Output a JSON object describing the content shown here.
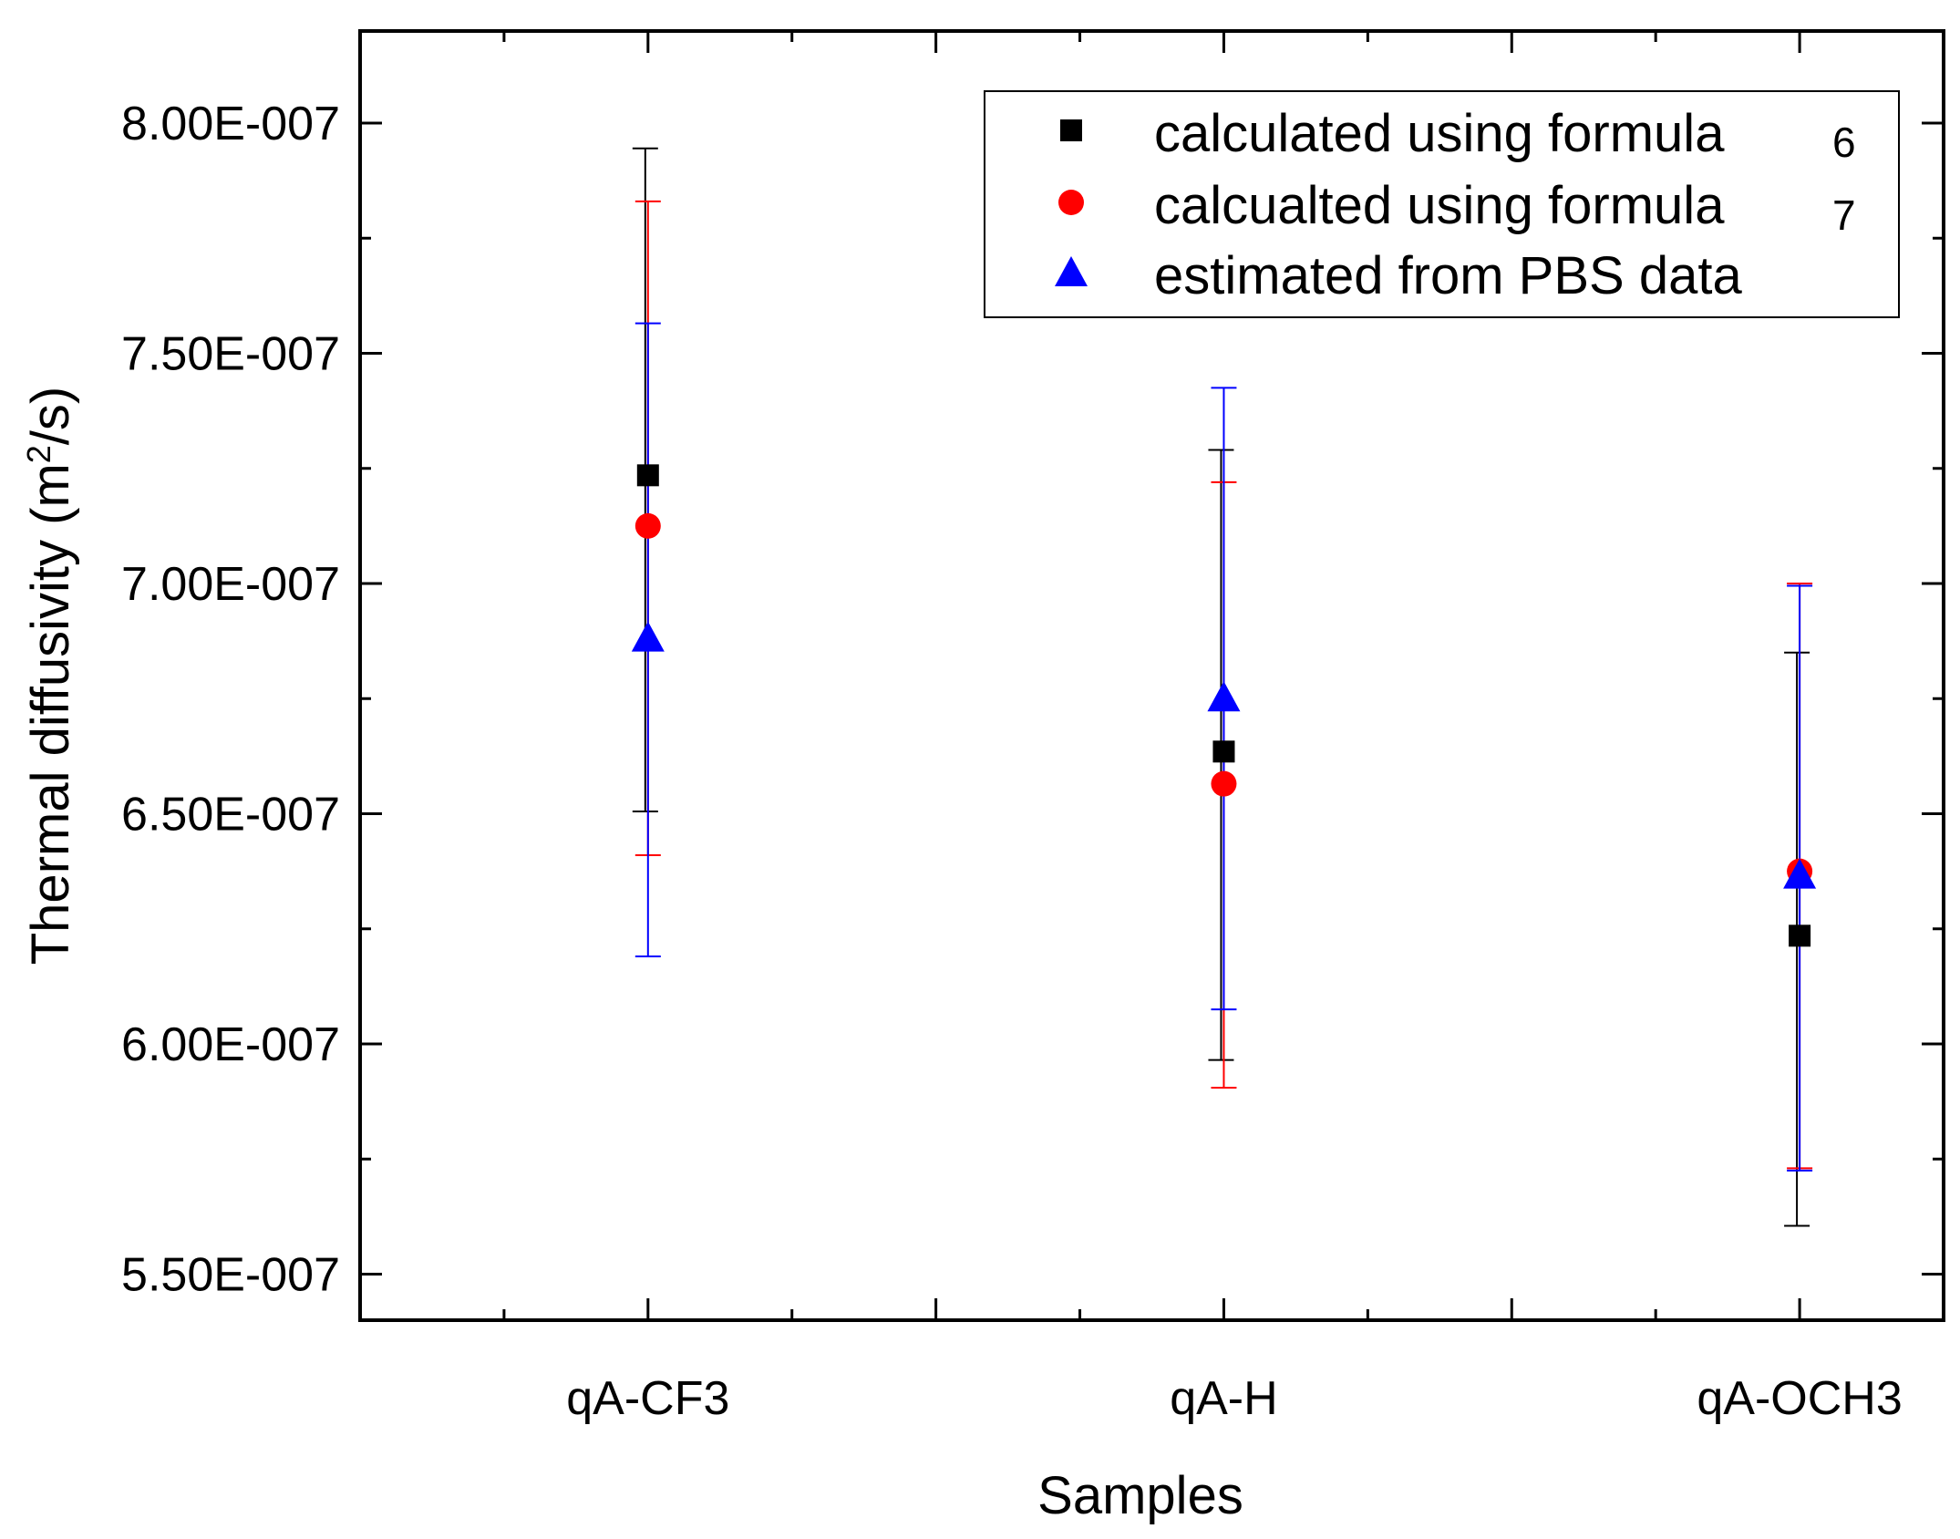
{
  "chart_data": {
    "type": "scatter",
    "title": "",
    "xlabel": "Samples",
    "ylabel_main": "Thermal diffusivity (m",
    "ylabel_sup": "2",
    "ylabel_tail": "/s)",
    "categories": [
      "qA-CF3",
      "qA-H",
      "qA-OCH3"
    ],
    "xlim": [
      0.5,
      3.25
    ],
    "ylim": [
      5.4e-07,
      8.2e-07
    ],
    "yticks": [
      5.5e-07,
      6e-07,
      6.5e-07,
      7e-07,
      7.5e-07,
      8e-07
    ],
    "ytick_labels": [
      "5.50E-007",
      "6.00E-007",
      "6.50E-007",
      "7.00E-007",
      "7.50E-007",
      "8.00E-007"
    ],
    "legend_position": "top-right",
    "series": [
      {
        "name": "calculated using formula",
        "legend_suffix": "6",
        "marker": "square",
        "color": "#000000",
        "values": [
          7.235e-07,
          6.635e-07,
          6.235e-07
        ],
        "err_low": [
          6.505e-07,
          5.965e-07,
          5.605e-07
        ],
        "err_high": [
          7.945e-07,
          7.29e-07,
          6.85e-07
        ]
      },
      {
        "name": "calcualted using formula",
        "legend_suffix": "7",
        "marker": "circle",
        "color": "#ff0000",
        "values": [
          7.125e-07,
          6.565e-07,
          6.375e-07
        ],
        "err_low": [
          6.41e-07,
          5.905e-07,
          5.73e-07
        ],
        "err_high": [
          7.83e-07,
          7.22e-07,
          7e-07
        ]
      },
      {
        "name": "estimated from PBS data",
        "legend_suffix": "",
        "marker": "triangle",
        "color": "#0000ff",
        "values": [
          6.88e-07,
          6.75e-07,
          6.365e-07
        ],
        "err_low": [
          6.19e-07,
          6.075e-07,
          5.725e-07
        ],
        "err_high": [
          7.565e-07,
          7.425e-07,
          6.995e-07
        ]
      }
    ]
  }
}
